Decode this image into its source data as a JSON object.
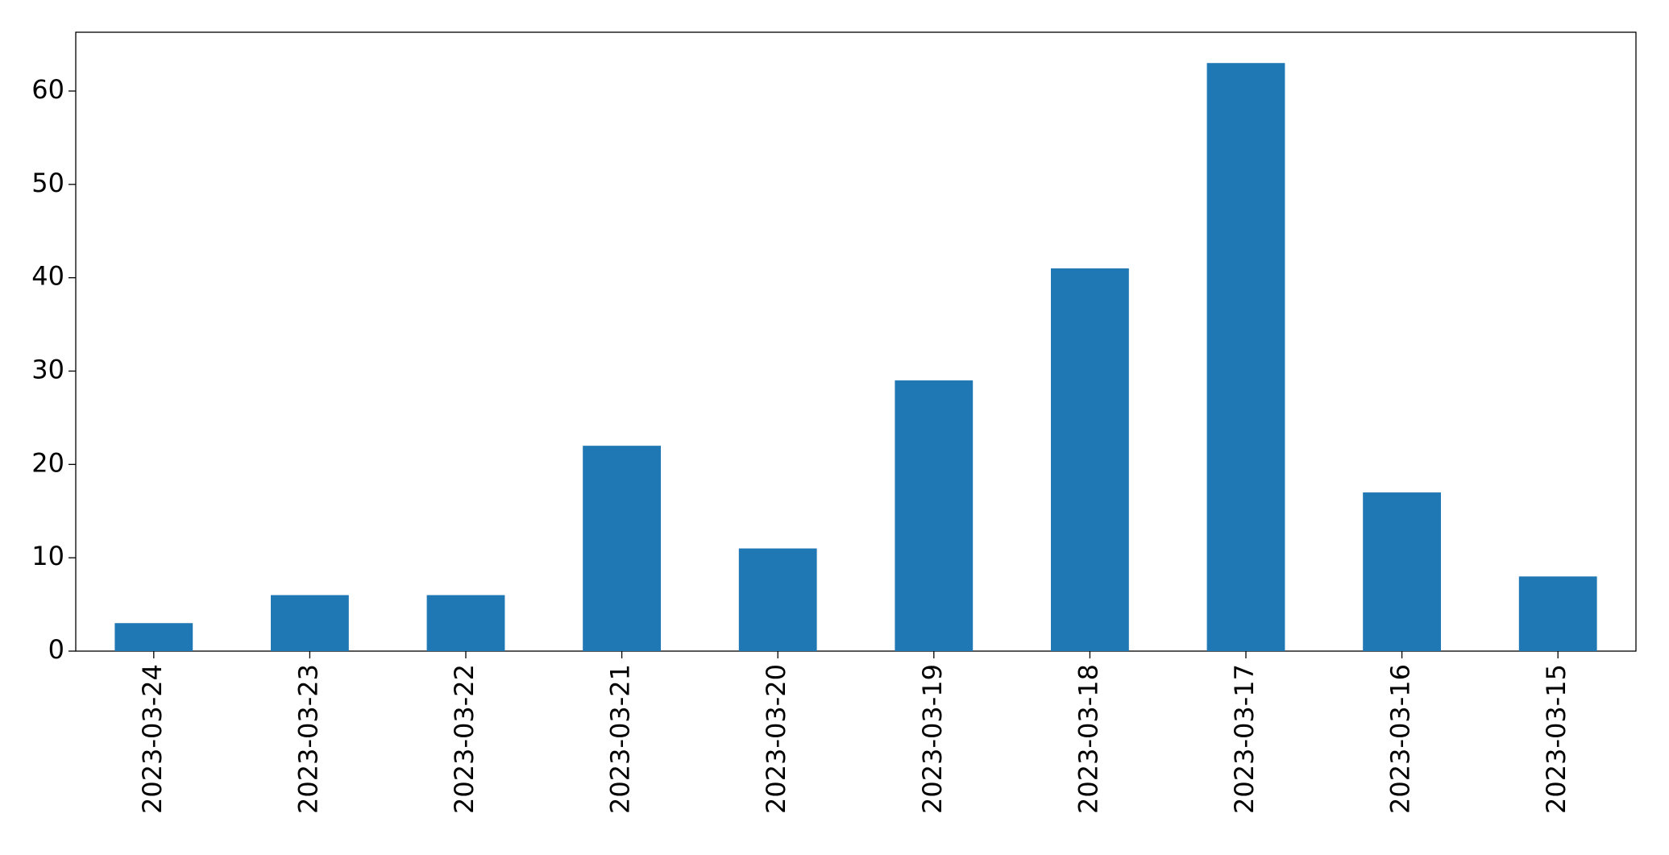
{
  "chart_data": {
    "type": "bar",
    "categories": [
      "2023-03-24",
      "2023-03-23",
      "2023-03-22",
      "2023-03-21",
      "2023-03-20",
      "2023-03-19",
      "2023-03-18",
      "2023-03-17",
      "2023-03-16",
      "2023-03-15"
    ],
    "values": [
      3,
      6,
      6,
      22,
      11,
      29,
      41,
      63,
      17,
      8
    ],
    "color": "#1f77b4",
    "ylim": [
      0,
      66.3
    ],
    "yticks": [
      0,
      10,
      20,
      30,
      40,
      50,
      60
    ],
    "grid": false
  }
}
